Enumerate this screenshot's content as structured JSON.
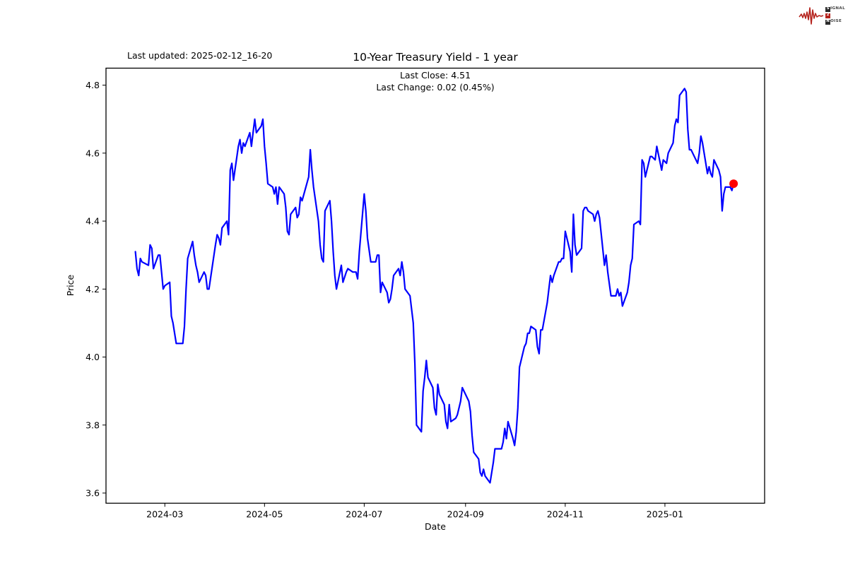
{
  "header": {
    "last_updated": "Last updated: 2025-02-12_16-20",
    "title": "10-Year Treasury Yield - 1 year",
    "subtitle_line1": "Last Close: 4.51",
    "subtitle_line2": "Last Change: 0.02 (0.45%)"
  },
  "logo": {
    "row1_initial": "S",
    "row1_rest": "IGNAL",
    "row2_initial": "2",
    "row2_rest": "",
    "row3_initial": "N",
    "row3_rest": "OISE",
    "accent_color": "#b5231d"
  },
  "chart_data": {
    "type": "line",
    "title": "10-Year Treasury Yield - 1 year",
    "xlabel": "Date",
    "ylabel": "Price",
    "last_close": 4.51,
    "last_change": 0.02,
    "last_change_pct": "0.45%",
    "legend": "none",
    "grid": false,
    "line_color": "#0000ff",
    "marker_color": "#ff0000",
    "xlim": [
      "2024-01-25",
      "2025-03-03"
    ],
    "ylim": [
      3.57,
      4.85
    ],
    "y_ticks": [
      3.6,
      3.8,
      4.0,
      4.2,
      4.4,
      4.6,
      4.8
    ],
    "x_ticks": [
      {
        "label": "2024-03",
        "date": "2024-03-01"
      },
      {
        "label": "2024-05",
        "date": "2024-05-01"
      },
      {
        "label": "2024-07",
        "date": "2024-07-01"
      },
      {
        "label": "2024-09",
        "date": "2024-09-01"
      },
      {
        "label": "2024-11",
        "date": "2024-11-01"
      },
      {
        "label": "2025-01",
        "date": "2025-01-01"
      }
    ],
    "dates": [
      "2024-02-12",
      "2024-02-13",
      "2024-02-14",
      "2024-02-15",
      "2024-02-16",
      "2024-02-20",
      "2024-02-21",
      "2024-02-22",
      "2024-02-23",
      "2024-02-26",
      "2024-02-27",
      "2024-02-28",
      "2024-02-29",
      "2024-03-01",
      "2024-03-04",
      "2024-03-05",
      "2024-03-06",
      "2024-03-07",
      "2024-03-08",
      "2024-03-11",
      "2024-03-12",
      "2024-03-13",
      "2024-03-14",
      "2024-03-15",
      "2024-03-18",
      "2024-03-19",
      "2024-03-20",
      "2024-03-21",
      "2024-03-22",
      "2024-03-25",
      "2024-03-26",
      "2024-03-27",
      "2024-03-28",
      "2024-04-01",
      "2024-04-02",
      "2024-04-03",
      "2024-04-04",
      "2024-04-05",
      "2024-04-08",
      "2024-04-09",
      "2024-04-10",
      "2024-04-11",
      "2024-04-12",
      "2024-04-15",
      "2024-04-16",
      "2024-04-17",
      "2024-04-18",
      "2024-04-19",
      "2024-04-22",
      "2024-04-23",
      "2024-04-24",
      "2024-04-25",
      "2024-04-26",
      "2024-04-29",
      "2024-04-30",
      "2024-05-01",
      "2024-05-02",
      "2024-05-03",
      "2024-05-06",
      "2024-05-07",
      "2024-05-08",
      "2024-05-09",
      "2024-05-10",
      "2024-05-13",
      "2024-05-14",
      "2024-05-15",
      "2024-05-16",
      "2024-05-17",
      "2024-05-20",
      "2024-05-21",
      "2024-05-22",
      "2024-05-23",
      "2024-05-24",
      "2024-05-28",
      "2024-05-29",
      "2024-05-30",
      "2024-05-31",
      "2024-06-03",
      "2024-06-04",
      "2024-06-05",
      "2024-06-06",
      "2024-06-07",
      "2024-06-10",
      "2024-06-11",
      "2024-06-12",
      "2024-06-13",
      "2024-06-14",
      "2024-06-17",
      "2024-06-18",
      "2024-06-20",
      "2024-06-21",
      "2024-06-24",
      "2024-06-25",
      "2024-06-26",
      "2024-06-27",
      "2024-06-28",
      "2024-07-01",
      "2024-07-02",
      "2024-07-03",
      "2024-07-05",
      "2024-07-08",
      "2024-07-09",
      "2024-07-10",
      "2024-07-11",
      "2024-07-12",
      "2024-07-15",
      "2024-07-16",
      "2024-07-17",
      "2024-07-18",
      "2024-07-19",
      "2024-07-22",
      "2024-07-23",
      "2024-07-24",
      "2024-07-25",
      "2024-07-26",
      "2024-07-29",
      "2024-07-30",
      "2024-07-31",
      "2024-08-01",
      "2024-08-02",
      "2024-08-05",
      "2024-08-06",
      "2024-08-07",
      "2024-08-08",
      "2024-08-09",
      "2024-08-12",
      "2024-08-13",
      "2024-08-14",
      "2024-08-15",
      "2024-08-16",
      "2024-08-19",
      "2024-08-20",
      "2024-08-21",
      "2024-08-22",
      "2024-08-23",
      "2024-08-26",
      "2024-08-27",
      "2024-08-28",
      "2024-08-29",
      "2024-08-30",
      "2024-09-03",
      "2024-09-04",
      "2024-09-05",
      "2024-09-06",
      "2024-09-09",
      "2024-09-10",
      "2024-09-11",
      "2024-09-12",
      "2024-09-13",
      "2024-09-16",
      "2024-09-17",
      "2024-09-18",
      "2024-09-19",
      "2024-09-20",
      "2024-09-23",
      "2024-09-24",
      "2024-09-25",
      "2024-09-26",
      "2024-09-27",
      "2024-09-30",
      "2024-10-01",
      "2024-10-02",
      "2024-10-03",
      "2024-10-04",
      "2024-10-07",
      "2024-10-08",
      "2024-10-09",
      "2024-10-10",
      "2024-10-11",
      "2024-10-14",
      "2024-10-15",
      "2024-10-16",
      "2024-10-17",
      "2024-10-18",
      "2024-10-21",
      "2024-10-22",
      "2024-10-23",
      "2024-10-24",
      "2024-10-25",
      "2024-10-28",
      "2024-10-29",
      "2024-10-30",
      "2024-10-31",
      "2024-11-01",
      "2024-11-04",
      "2024-11-05",
      "2024-11-06",
      "2024-11-07",
      "2024-11-08",
      "2024-11-11",
      "2024-11-12",
      "2024-11-13",
      "2024-11-14",
      "2024-11-15",
      "2024-11-18",
      "2024-11-19",
      "2024-11-20",
      "2024-11-21",
      "2024-11-22",
      "2024-11-25",
      "2024-11-26",
      "2024-11-27",
      "2024-11-29",
      "2024-12-02",
      "2024-12-03",
      "2024-12-04",
      "2024-12-05",
      "2024-12-06",
      "2024-12-09",
      "2024-12-10",
      "2024-12-11",
      "2024-12-12",
      "2024-12-13",
      "2024-12-16",
      "2024-12-17",
      "2024-12-18",
      "2024-12-19",
      "2024-12-20",
      "2024-12-23",
      "2024-12-24",
      "2024-12-26",
      "2024-12-27",
      "2024-12-30",
      "2024-12-31",
      "2025-01-02",
      "2025-01-03",
      "2025-01-06",
      "2025-01-07",
      "2025-01-08",
      "2025-01-09",
      "2025-01-10",
      "2025-01-13",
      "2025-01-14",
      "2025-01-15",
      "2025-01-16",
      "2025-01-17",
      "2025-01-21",
      "2025-01-22",
      "2025-01-23",
      "2025-01-24",
      "2025-01-27",
      "2025-01-28",
      "2025-01-29",
      "2025-01-30",
      "2025-01-31",
      "2025-02-03",
      "2025-02-04",
      "2025-02-05",
      "2025-02-06",
      "2025-02-07",
      "2025-02-10",
      "2025-02-11",
      "2025-02-12"
    ],
    "values": [
      4.31,
      4.26,
      4.24,
      4.29,
      4.28,
      4.27,
      4.33,
      4.32,
      4.26,
      4.3,
      4.3,
      4.25,
      4.2,
      4.21,
      4.22,
      4.12,
      4.1,
      4.07,
      4.04,
      4.04,
      4.04,
      4.09,
      4.2,
      4.29,
      4.34,
      4.3,
      4.27,
      4.25,
      4.22,
      4.25,
      4.24,
      4.2,
      4.2,
      4.33,
      4.36,
      4.35,
      4.33,
      4.38,
      4.4,
      4.36,
      4.55,
      4.57,
      4.52,
      4.62,
      4.64,
      4.6,
      4.63,
      4.62,
      4.66,
      4.62,
      4.66,
      4.7,
      4.66,
      4.68,
      4.7,
      4.62,
      4.57,
      4.51,
      4.5,
      4.48,
      4.5,
      4.45,
      4.5,
      4.48,
      4.44,
      4.37,
      4.36,
      4.42,
      4.44,
      4.41,
      4.42,
      4.47,
      4.46,
      4.53,
      4.61,
      4.55,
      4.5,
      4.4,
      4.33,
      4.29,
      4.28,
      4.43,
      4.46,
      4.4,
      4.31,
      4.24,
      4.2,
      4.27,
      4.22,
      4.25,
      4.26,
      4.25,
      4.25,
      4.25,
      4.23,
      4.31,
      4.48,
      4.43,
      4.35,
      4.28,
      4.28,
      4.3,
      4.3,
      4.19,
      4.22,
      4.19,
      4.16,
      4.17,
      4.2,
      4.24,
      4.26,
      4.24,
      4.28,
      4.25,
      4.2,
      4.18,
      4.14,
      4.1,
      3.98,
      3.8,
      3.78,
      3.9,
      3.94,
      3.99,
      3.94,
      3.91,
      3.85,
      3.83,
      3.92,
      3.89,
      3.86,
      3.81,
      3.79,
      3.86,
      3.81,
      3.82,
      3.83,
      3.85,
      3.87,
      3.91,
      3.87,
      3.84,
      3.77,
      3.72,
      3.7,
      3.66,
      3.65,
      3.67,
      3.65,
      3.63,
      3.66,
      3.69,
      3.73,
      3.73,
      3.73,
      3.75,
      3.79,
      3.76,
      3.81,
      3.76,
      3.74,
      3.78,
      3.85,
      3.97,
      4.03,
      4.04,
      4.07,
      4.07,
      4.09,
      4.08,
      4.03,
      4.01,
      4.08,
      4.08,
      4.16,
      4.2,
      4.24,
      4.22,
      4.24,
      4.28,
      4.28,
      4.29,
      4.29,
      4.37,
      4.31,
      4.25,
      4.42,
      4.33,
      4.3,
      4.32,
      4.43,
      4.44,
      4.44,
      4.43,
      4.42,
      4.4,
      4.42,
      4.43,
      4.41,
      4.27,
      4.3,
      4.25,
      4.18,
      4.18,
      4.2,
      4.18,
      4.19,
      4.15,
      4.19,
      4.22,
      4.27,
      4.29,
      4.39,
      4.4,
      4.39,
      4.58,
      4.57,
      4.53,
      4.59,
      4.59,
      4.58,
      4.62,
      4.55,
      4.58,
      4.57,
      4.6,
      4.63,
      4.68,
      4.7,
      4.69,
      4.77,
      4.79,
      4.78,
      4.67,
      4.61,
      4.61,
      4.57,
      4.6,
      4.65,
      4.63,
      4.54,
      4.56,
      4.54,
      4.53,
      4.58,
      4.55,
      4.53,
      4.43,
      4.48,
      4.5,
      4.5,
      4.49,
      4.51
    ]
  }
}
